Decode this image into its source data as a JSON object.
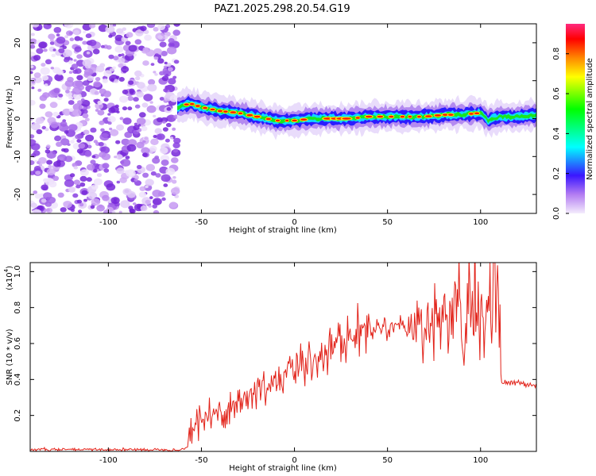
{
  "page": {
    "title": "PAZ1.2025.298.20.54.G19"
  },
  "colors": {
    "snr_line": "#e2231a",
    "noise": "#8c3fe0",
    "colormap": [
      "#f4ecfc",
      "#8a2be2",
      "#0000ff",
      "#00ffff",
      "#00ff00",
      "#ffff00",
      "#ff7f00",
      "#ff0000",
      "#ff1493"
    ]
  },
  "chart_data": [
    {
      "type": "heatmap",
      "id": "spectrogram",
      "xlabel": "Height of straight line (km)",
      "ylabel": "Frequency (Hz)",
      "xlim": [
        -142,
        130
      ],
      "ylim": [
        -25,
        25
      ],
      "xticks": [
        -100,
        -50,
        0,
        50,
        100
      ],
      "yticks": [
        -20,
        -10,
        0,
        10,
        20
      ],
      "noise_region_x": [
        -142,
        -63
      ],
      "signal_ridge": {
        "x": [
          -63,
          -56,
          -50,
          -40,
          -30,
          -20,
          -10,
          0,
          10,
          20,
          30,
          40,
          50,
          60,
          70,
          80,
          90,
          100,
          104,
          110,
          120,
          130
        ],
        "y": [
          3,
          4,
          3,
          2,
          1.5,
          0.5,
          -0.5,
          -0.5,
          0,
          0,
          0,
          0.5,
          0.5,
          0.5,
          0.5,
          1,
          1,
          1.5,
          -0.5,
          0.5,
          0.5,
          1
        ]
      },
      "colorbar": {
        "label": "Normalized spectral amplitude",
        "range": [
          0,
          0.95
        ],
        "ticks": [
          "0.0",
          "0.2",
          "0.4",
          "0.6",
          "0.8"
        ]
      }
    },
    {
      "type": "line",
      "id": "snr",
      "xlabel": "Height of straight line (km)",
      "ylabel": "SNR (10 * v/v)",
      "y_multiplier": "(x10",
      "y_multiplier_exp": "4",
      "y_multiplier_close": ")",
      "xlim": [
        -142,
        130
      ],
      "ylim": [
        0,
        1.05
      ],
      "xticks": [
        -100,
        -50,
        0,
        50,
        100
      ],
      "yticks": [
        0.2,
        0.4,
        0.6,
        0.8,
        1.0
      ],
      "ytick_labels": [
        "0.2",
        "0.4",
        "0.6",
        "0.8",
        "1.0"
      ],
      "series": [
        {
          "x": [
            -142,
            -60,
            -57,
            -56,
            -50,
            -40,
            -30,
            -20,
            -10,
            0,
            10,
            20,
            30,
            40,
            50,
            60,
            65,
            70,
            80,
            90,
            100,
            105,
            110,
            111,
            115,
            120,
            130
          ],
          "y": [
            0.01,
            0.01,
            0.03,
            0.15,
            0.17,
            0.22,
            0.27,
            0.33,
            0.4,
            0.45,
            0.52,
            0.58,
            0.64,
            0.68,
            0.7,
            0.7,
            0.71,
            0.72,
            0.73,
            0.75,
            0.76,
            0.76,
            0.76,
            0.38,
            0.38,
            0.38,
            0.37
          ]
        }
      ]
    }
  ]
}
